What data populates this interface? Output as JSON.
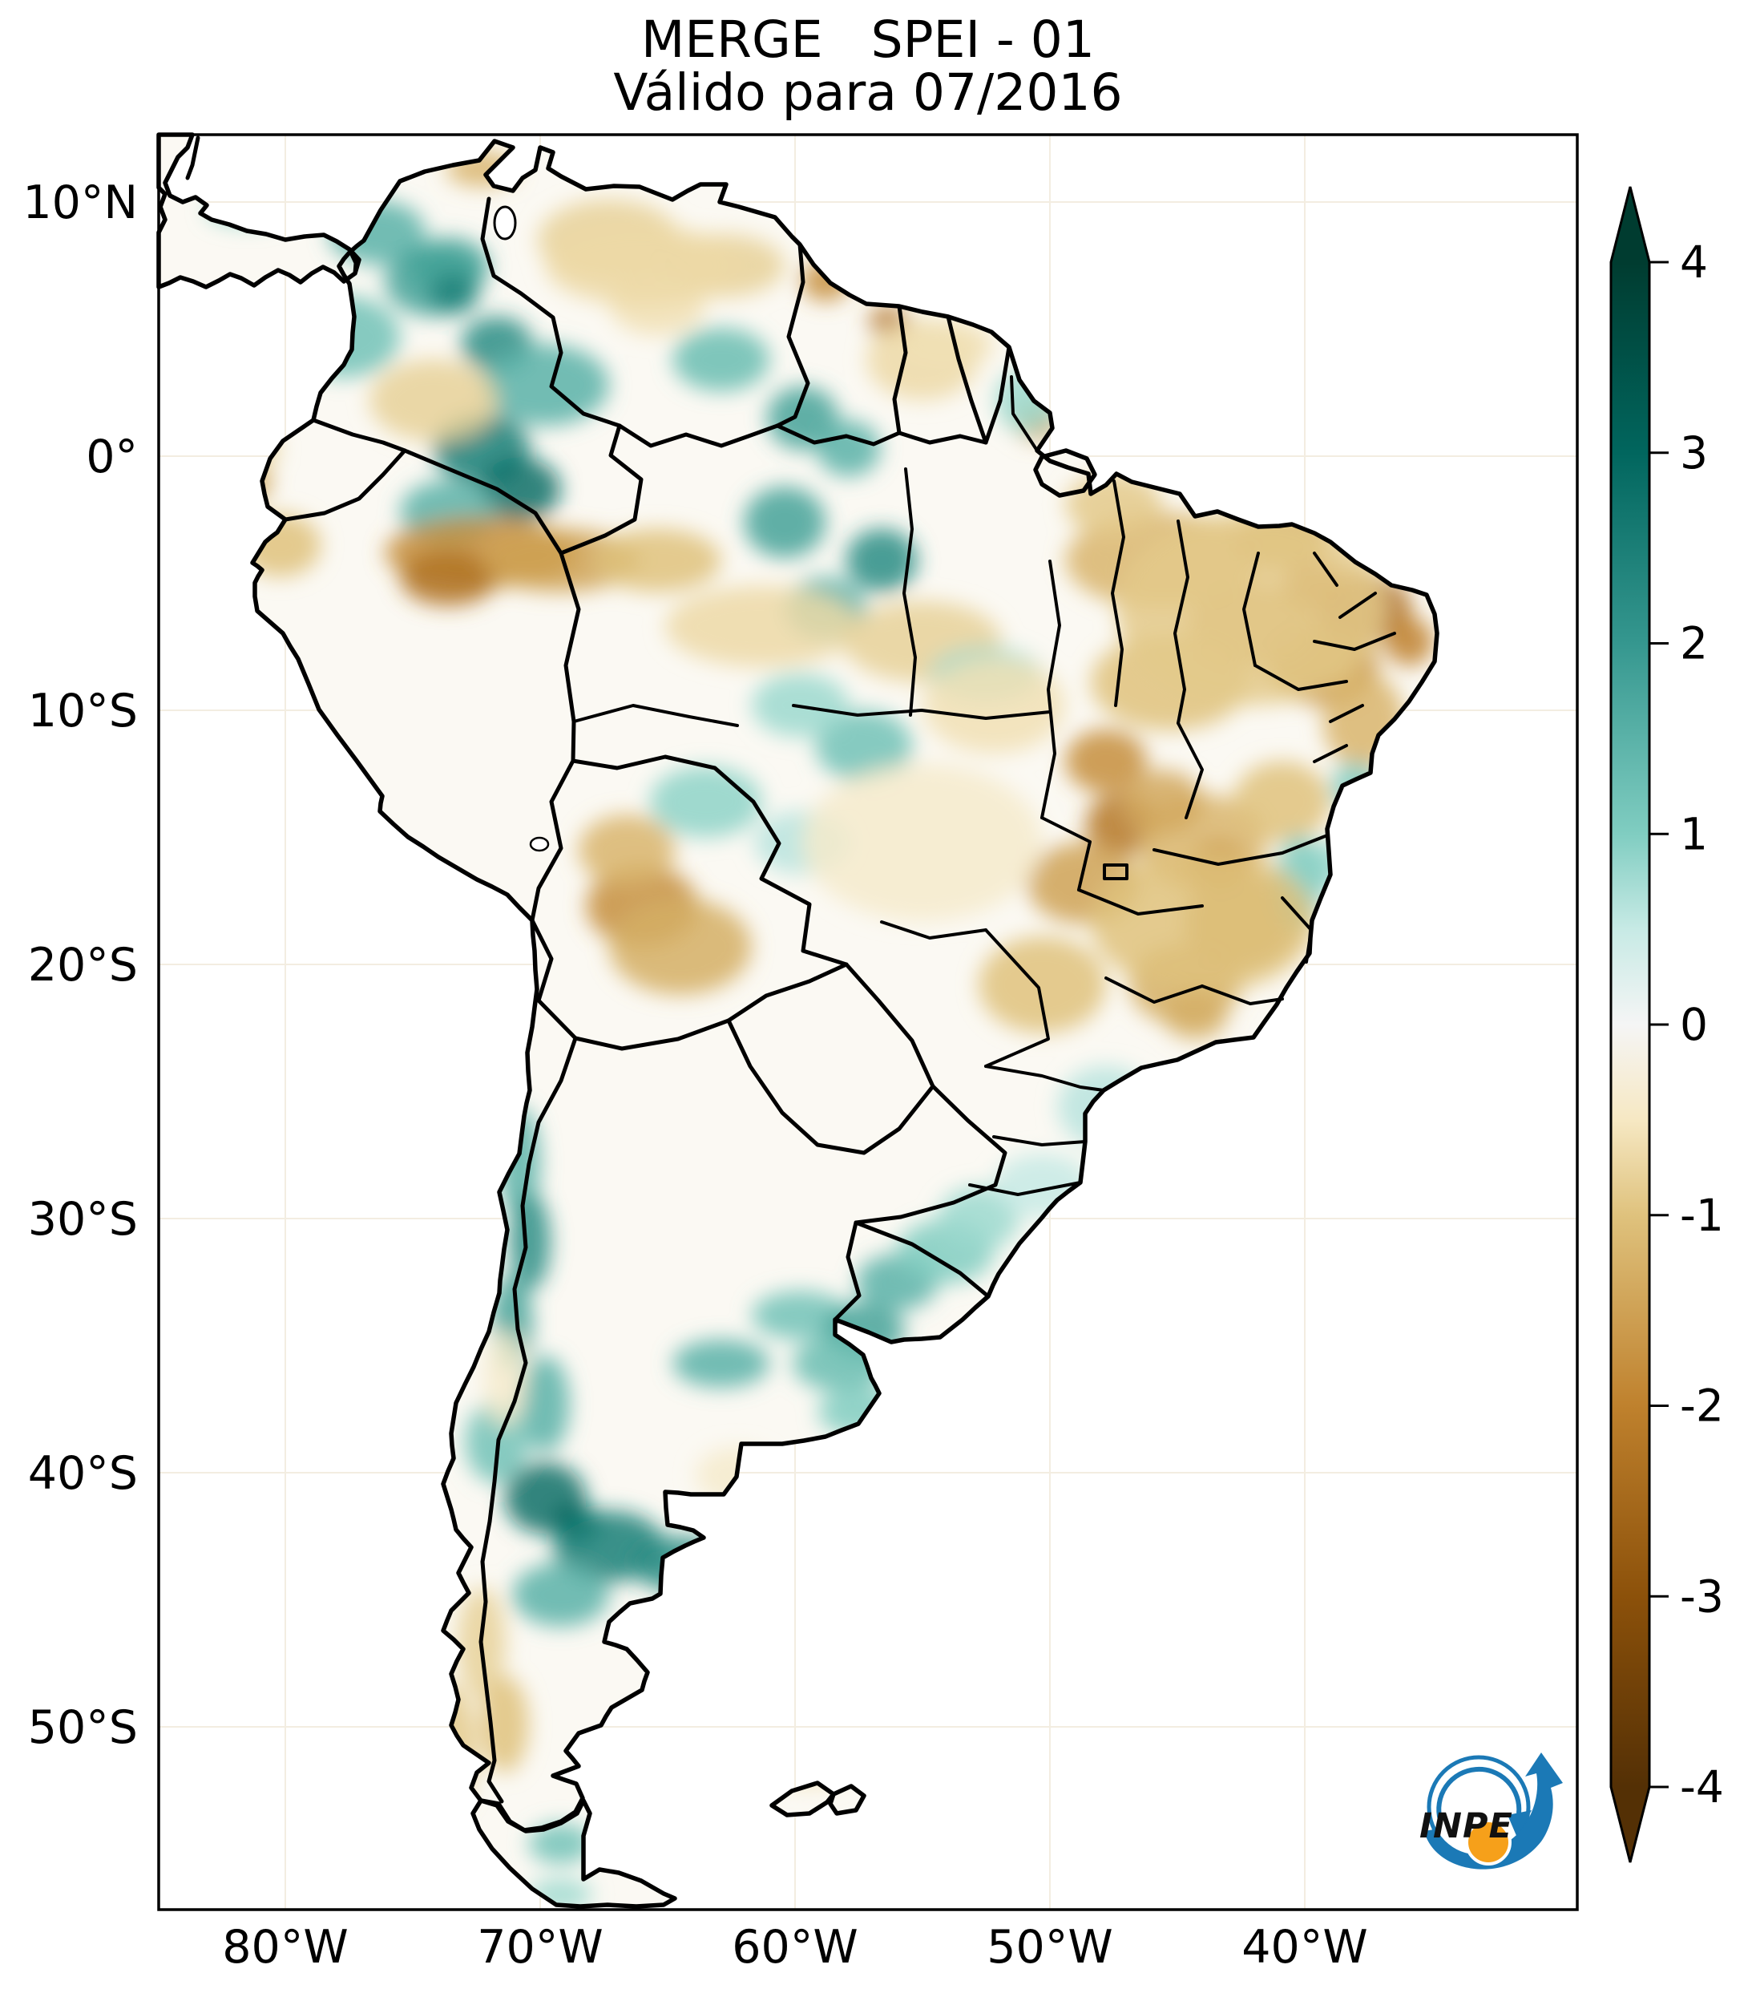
{
  "title": {
    "line1": "MERGE   SPEI - 01",
    "line2": "Válido para 07/2016"
  },
  "axes": {
    "lat_ticks": [
      {
        "label": "10°N",
        "value": 10
      },
      {
        "label": "0°",
        "value": 0
      },
      {
        "label": "10°S",
        "value": -10
      },
      {
        "label": "20°S",
        "value": -20
      },
      {
        "label": "30°S",
        "value": -30
      },
      {
        "label": "40°S",
        "value": -40
      },
      {
        "label": "50°S",
        "value": -50
      }
    ],
    "lon_ticks": [
      {
        "label": "80°W",
        "value": -80
      },
      {
        "label": "70°W",
        "value": -70
      },
      {
        "label": "60°W",
        "value": -60
      },
      {
        "label": "50°W",
        "value": -50
      },
      {
        "label": "40°W",
        "value": -40
      }
    ]
  },
  "colorbar": {
    "ticks": [
      {
        "label": "4",
        "value": 4
      },
      {
        "label": "3",
        "value": 3
      },
      {
        "label": "2",
        "value": 2
      },
      {
        "label": "1",
        "value": 1
      },
      {
        "label": "0",
        "value": 0
      },
      {
        "label": "-1",
        "value": -1
      },
      {
        "label": "-2",
        "value": -2
      },
      {
        "label": "-3",
        "value": -3
      },
      {
        "label": "-4",
        "value": -4
      }
    ],
    "stops": [
      {
        "value": -4,
        "color": "#543005"
      },
      {
        "value": -3,
        "color": "#8c510a"
      },
      {
        "value": -2,
        "color": "#bf812d"
      },
      {
        "value": -1,
        "color": "#dfc27d"
      },
      {
        "value": -0.5,
        "color": "#f6e8c3"
      },
      {
        "value": 0,
        "color": "#f5f5f5"
      },
      {
        "value": 0.5,
        "color": "#c7eae5"
      },
      {
        "value": 1,
        "color": "#80cdc1"
      },
      {
        "value": 2,
        "color": "#35978f"
      },
      {
        "value": 3,
        "color": "#01665e"
      },
      {
        "value": 4,
        "color": "#003c30"
      }
    ]
  },
  "logo": {
    "label": "INPE",
    "blue": "#1b79b6",
    "orange": "#f6a01a"
  },
  "chart_data": {
    "type": "heatmap",
    "title": "MERGE   SPEI - 01",
    "subtitle": "Válido para 07/2016",
    "variable": "SPEI-01",
    "valid_for": "07/2016",
    "colormap": "BrBG",
    "colorbar_range": [
      -4,
      4
    ],
    "extent": {
      "lon_min": -85,
      "lon_max": -29.3,
      "lat_min": -56.9,
      "lat_max": 12.7
    },
    "anomaly_fields": [
      "lon",
      "lat",
      "spei",
      "rx_deg",
      "ry_deg"
    ],
    "anomalies": [
      [
        -76.4,
        8.8,
        1.5,
        1.9,
        1.25
      ],
      [
        -73.6,
        7.5,
        1.8,
        1.6,
        1.1
      ],
      [
        -77.7,
        4.7,
        1.2,
        2.2,
        1.6
      ],
      [
        -71.7,
        4.4,
        2.2,
        1.4,
        1.1
      ],
      [
        -69.8,
        2.8,
        1.5,
        2.5,
        1.6
      ],
      [
        -72.3,
        0.3,
        2.5,
        1.9,
        1.4
      ],
      [
        -70.8,
        -1.3,
        2.8,
        1.6,
        1.25
      ],
      [
        -73.6,
        -2.2,
        1.5,
        1.9,
        1.25
      ],
      [
        -62.9,
        3.8,
        1.3,
        1.9,
        1.25
      ],
      [
        -59.7,
        1.5,
        1.8,
        1.4,
        1.25
      ],
      [
        -57.9,
        0.3,
        1.5,
        1.25,
        1.1
      ],
      [
        -60.4,
        -2.6,
        1.8,
        1.6,
        1.4
      ],
      [
        -56.6,
        -4.1,
        2.2,
        1.4,
        1.25
      ],
      [
        -58.8,
        -6.0,
        1.5,
        1.6,
        1.25
      ],
      [
        -67.3,
        8.5,
        -0.8,
        2.8,
        1.6
      ],
      [
        -58.8,
        6.9,
        -1.8,
        0.95,
        0.8
      ],
      [
        -56.3,
        5.3,
        -2.2,
        0.8,
        0.6
      ],
      [
        -62.9,
        7.5,
        -0.8,
        2.5,
        1.25
      ],
      [
        -55.0,
        3.8,
        -0.7,
        2.2,
        1.6
      ],
      [
        -65.4,
        6.0,
        -0.6,
        1.9,
        1.25
      ],
      [
        -50.5,
        1.4,
        -1.4,
        0.95,
        0.8
      ],
      [
        -81.8,
        -1.0,
        -1.5,
        1.25,
        0.95
      ],
      [
        -80.2,
        -3.5,
        -1.0,
        1.6,
        1.25
      ],
      [
        -81.5,
        0.3,
        -0.8,
        1.25,
        0.95
      ],
      [
        -72.3,
        -3.8,
        -1.8,
        3.8,
        1.4
      ],
      [
        -73.6,
        -4.8,
        -2.3,
        1.9,
        1.1
      ],
      [
        -69.2,
        -4.1,
        -1.5,
        3.1,
        1.25
      ],
      [
        -65.4,
        -4.1,
        -1.0,
        2.5,
        1.25
      ],
      [
        -61.3,
        -6.7,
        -0.7,
        3.8,
        1.6
      ],
      [
        -55.0,
        -7.3,
        -0.8,
        3.1,
        1.6
      ],
      [
        -57.3,
        -11.4,
        1.2,
        1.9,
        1.4
      ],
      [
        -59.8,
        -9.8,
        0.8,
        1.9,
        1.25
      ],
      [
        -52.5,
        -8.6,
        0.8,
        2.2,
        1.1
      ],
      [
        -52.2,
        -9.8,
        -0.6,
        2.8,
        1.9
      ],
      [
        -45.6,
        -4.1,
        -1.2,
        3.8,
        1.9
      ],
      [
        -40.9,
        -3.2,
        -1.5,
        1.9,
        1.25
      ],
      [
        -37.7,
        -6.0,
        -2.3,
        1.9,
        1.4
      ],
      [
        -39.3,
        -8.2,
        -1.8,
        2.2,
        1.6
      ],
      [
        -42.1,
        -6.7,
        -1.3,
        2.5,
        1.6
      ],
      [
        -37.7,
        -10.4,
        -1.2,
        1.6,
        1.9
      ],
      [
        -45.3,
        -8.9,
        -1.0,
        3.1,
        1.9
      ],
      [
        -47.8,
        -12.0,
        -1.8,
        1.6,
        1.25
      ],
      [
        -47.2,
        -14.5,
        -2.2,
        1.4,
        1.25
      ],
      [
        -48.7,
        -16.8,
        -1.5,
        2.2,
        1.6
      ],
      [
        -44.0,
        -15.2,
        -1.2,
        2.5,
        1.9
      ],
      [
        -42.5,
        -18.3,
        -1.5,
        2.2,
        1.9
      ],
      [
        -44.7,
        -20.8,
        -1.3,
        2.2,
        1.6
      ],
      [
        -50.3,
        -20.8,
        -1.0,
        2.5,
        1.9
      ],
      [
        -40.9,
        -13.6,
        -1.0,
        1.9,
        1.6
      ],
      [
        -38.0,
        -13.0,
        1.0,
        0.95,
        0.95
      ],
      [
        -39.1,
        -16.1,
        0.8,
        0.95,
        0.95
      ],
      [
        -35.9,
        -7.3,
        -2.0,
        0.95,
        0.95
      ],
      [
        -39.6,
        -5.1,
        -2.0,
        1.25,
        0.95
      ],
      [
        -43.4,
        -16.1,
        -1.7,
        1.25,
        0.95
      ],
      [
        -45.6,
        -13.6,
        -1.4,
        1.6,
        1.25
      ],
      [
        -66.0,
        -17.7,
        -1.8,
        2.2,
        1.6
      ],
      [
        -64.5,
        -19.3,
        -1.3,
        2.8,
        1.9
      ],
      [
        -66.6,
        -15.5,
        -1.2,
        1.9,
        1.4
      ],
      [
        -63.5,
        -13.6,
        0.9,
        2.2,
        1.4
      ],
      [
        -59.7,
        -15.2,
        0.6,
        1.9,
        1.25
      ],
      [
        -70.8,
        -27.8,
        1.5,
        0.8,
        2.2
      ],
      [
        -70.4,
        -30.9,
        2.2,
        0.8,
        1.9
      ],
      [
        -71.1,
        -34.1,
        1.8,
        0.8,
        1.9
      ],
      [
        -69.8,
        -37.3,
        1.5,
        0.95,
        1.9
      ],
      [
        -69.8,
        -41.0,
        2.8,
        1.6,
        1.4
      ],
      [
        -68.6,
        -42.0,
        3.0,
        0.95,
        0.8
      ],
      [
        -67.3,
        -42.9,
        2.5,
        2.2,
        1.4
      ],
      [
        -64.5,
        -43.6,
        2.2,
        1.9,
        1.1
      ],
      [
        -69.2,
        -44.8,
        1.5,
        1.9,
        1.25
      ],
      [
        -71.7,
        -38.8,
        1.2,
        1.25,
        1.6
      ],
      [
        -62.9,
        -35.7,
        1.5,
        1.9,
        0.95
      ],
      [
        -59.8,
        -33.8,
        1.2,
        1.9,
        0.95
      ],
      [
        -57.3,
        -34.4,
        1.8,
        1.6,
        1.1
      ],
      [
        -56.0,
        -32.5,
        1.5,
        1.6,
        1.1
      ],
      [
        -58.2,
        -35.7,
        1.3,
        1.9,
        1.1
      ],
      [
        -54.1,
        -31.3,
        1.0,
        1.9,
        1.25
      ],
      [
        -52.8,
        -30.0,
        0.8,
        1.6,
        1.25
      ],
      [
        -47.8,
        -25.6,
        0.6,
        1.9,
        1.6
      ],
      [
        -50.3,
        -28.7,
        0.5,
        1.9,
        1.25
      ],
      [
        -57.5,
        -37.6,
        1.0,
        1.6,
        0.95
      ],
      [
        -62.3,
        -40.1,
        -0.4,
        1.6,
        1.1
      ],
      [
        -71.4,
        -36.3,
        -0.4,
        0.8,
        1.9
      ],
      [
        -72.3,
        -46.7,
        -0.8,
        0.95,
        2.2
      ],
      [
        -71.4,
        -49.9,
        -1.0,
        0.95,
        1.9
      ],
      [
        -73.6,
        -50.8,
        -0.9,
        1.1,
        2.5
      ],
      [
        -69.2,
        -54.6,
        1.2,
        1.25,
        0.8
      ],
      [
        -69.2,
        -56.6,
        0.8,
        1.25,
        0.6
      ],
      [
        -59.5,
        -51.7,
        -0.6,
        1.6,
        0.6
      ],
      [
        -81.5,
        9.7,
        0.9,
        1.6,
        0.6
      ],
      [
        -50.9,
        2.2,
        0.8,
        1.25,
        1.25
      ],
      [
        -47.5,
        -1.9,
        -0.9,
        1.9,
        1.25
      ],
      [
        -74.2,
        6.9,
        1.8,
        1.9,
        1.4
      ],
      [
        -73.4,
        6.4,
        2.4,
        0.95,
        0.8
      ],
      [
        -74.2,
        2.2,
        -0.8,
        2.5,
        1.6
      ],
      [
        -72.3,
        11.3,
        -1.2,
        1.4,
        0.7
      ],
      [
        -54.1,
        4.4,
        -0.6,
        1.9,
        0.95
      ],
      [
        -40.2,
        -16.8,
        1.0,
        0.95,
        1.9
      ],
      [
        -44.3,
        -22.0,
        -1.3,
        1.25,
        0.95
      ],
      [
        -42.1,
        -6.0,
        -0.9,
        5.3,
        3.8
      ],
      [
        -44.0,
        -18.3,
        -1.0,
        4.4,
        2.8
      ],
      [
        -55.0,
        -15.2,
        -0.4,
        4.7,
        3.1
      ],
      [
        -66.0,
        7.5,
        -0.7,
        3.8,
        1.6
      ]
    ]
  }
}
